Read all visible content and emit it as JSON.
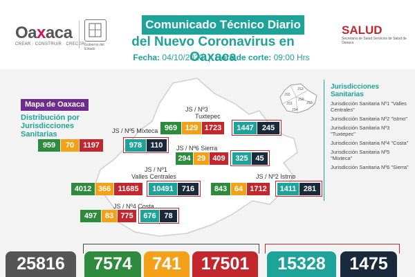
{
  "header": {
    "logo_text_pre": "Oa",
    "logo_text_x": "x",
    "logo_text_mid": "aca",
    "logo_tagline": "CREAR · CONSTRUIR · CRECER",
    "seal_caption": "Gobierno del Estado",
    "title_line1": "Comunicado Técnico Diario",
    "title_line2": "del Nuevo Coronavirus en Oaxaca",
    "date_label": "Fecha:",
    "date_value": "04/10/2020",
    "cut_label": "Hora de corte:",
    "cut_value": "09:00 Hrs",
    "salud": "SALUD",
    "salud_sub": "Secretaría de Salud Servicios de Salud de Oaxaca"
  },
  "map": {
    "title": "Mapa de Oaxaca",
    "subtitle": "Distribución por Jurisdicciones Sanitarias"
  },
  "regions": [
    {
      "label": "JS / Nº3",
      "label2": "Tuxtepec",
      "values": [
        "969",
        "129",
        "1723",
        "1447",
        "245"
      ]
    },
    {
      "label": "JS / Nº5 Mixteca",
      "label2": "",
      "values": [
        "959",
        "70",
        "1197",
        "978",
        "110"
      ]
    },
    {
      "label": "JS / Nº6 Sierra",
      "label2": "",
      "values": [
        "294",
        "29",
        "409",
        "325",
        "45"
      ]
    },
    {
      "label": "JS / Nº1",
      "label2": "Valles Centrales",
      "values": [
        "4012",
        "366",
        "11685",
        "10491",
        "716"
      ]
    },
    {
      "label": "JS / Nº2 Istmo",
      "label2": "",
      "values": [
        "843",
        "64",
        "1712",
        "1411",
        "281"
      ]
    },
    {
      "label": "JS / Nº4 Costa",
      "label2": "",
      "values": [
        "497",
        "83",
        "775",
        "676",
        "78"
      ]
    }
  ],
  "jurisdictions": {
    "title": "Jurisdicciones Sanitarias",
    "items": [
      "Jurisdicción Sanitaria Nº1 \"Valles Centrales\"",
      "Jurisdicción Sanitaria Nº2 \"Istmo\"",
      "Jurisdicción Sanitaria Nº3 \"Tuxtepec\"",
      "Jurisdicción Sanitaria Nº4 \"Costa\"",
      "Jurisdicción Sanitaria Nº5 \"Mixteca\"",
      "Jurisdicción Sanitaria Nº6 \"Sierra\""
    ],
    "mini_labels": [
      "JS3",
      "JS5",
      "JS6",
      "JS1",
      "JS2",
      "JS4"
    ]
  },
  "totals": [
    "25816",
    "7574",
    "741",
    "17501",
    "15328",
    "1475"
  ],
  "colors": {
    "green": "#2e8b3e",
    "orange": "#f4a11a",
    "red": "#c1272d",
    "teal": "#1da39a",
    "navy": "#1a2a3a",
    "grey": "#555555",
    "purple": "#6e2a8c"
  }
}
